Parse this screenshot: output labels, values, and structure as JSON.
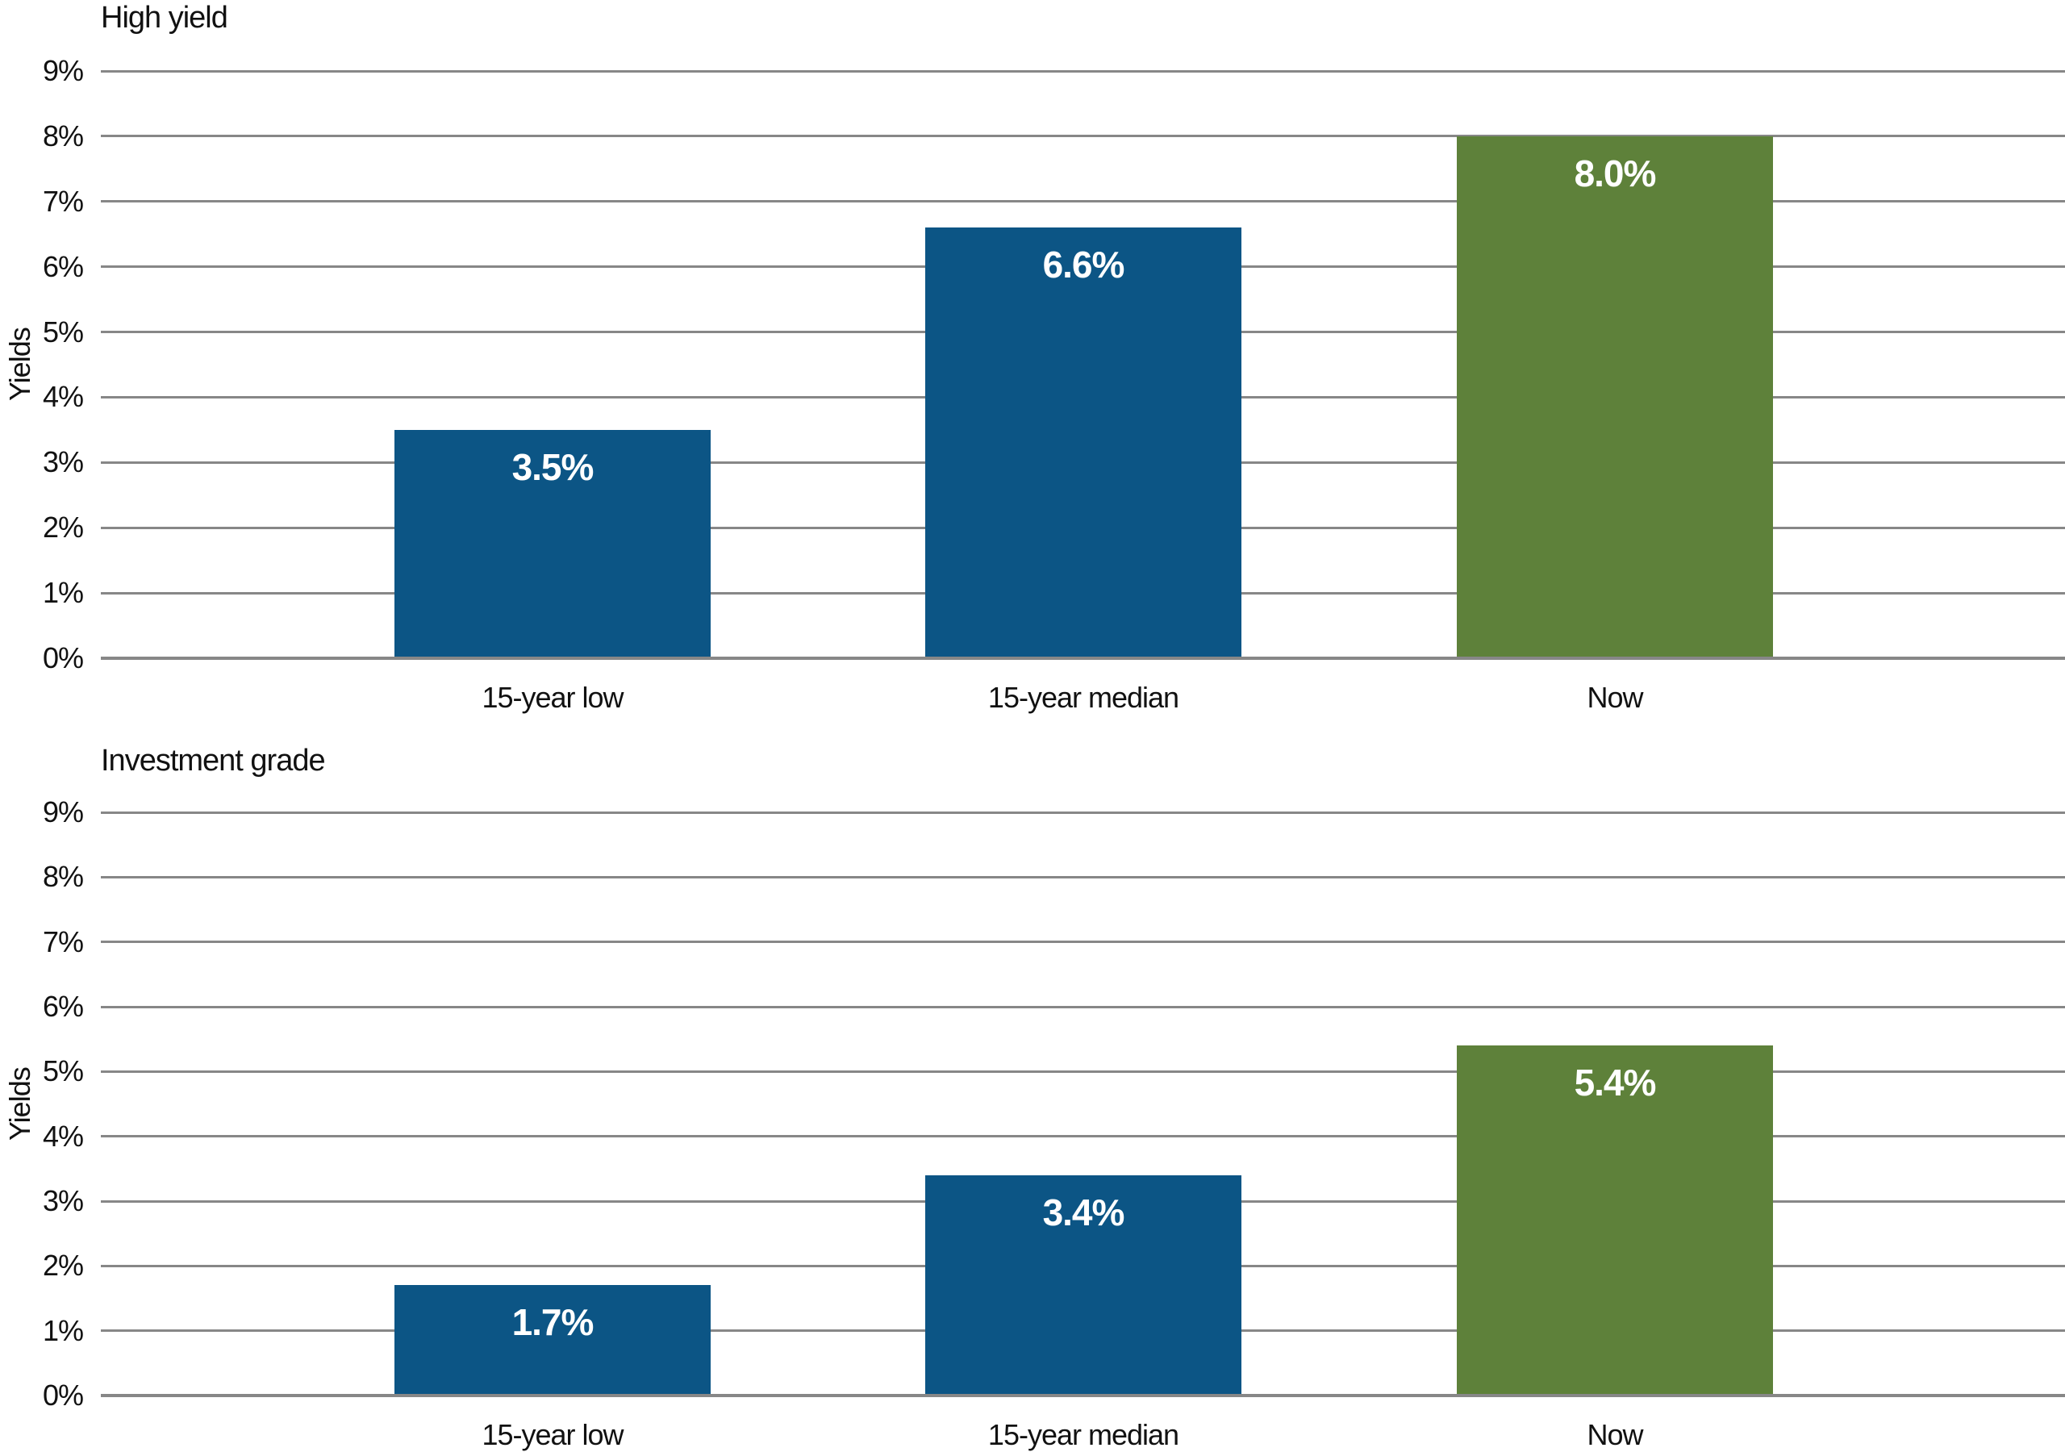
{
  "page": {
    "background": "#ffffff"
  },
  "colors": {
    "bar_blue": "#0C5585",
    "bar_green": "#5E813A",
    "grid": "#878787",
    "axis": "#878787",
    "text": "#111111",
    "value_text": "#ffffff"
  },
  "chart_data": [
    {
      "type": "bar",
      "title": "High yield",
      "ylabel": "Yields",
      "xlabel": "",
      "categories": [
        "15-year low",
        "15-year median",
        "Now"
      ],
      "values": [
        3.5,
        6.6,
        8.0
      ],
      "value_labels": [
        "3.5%",
        "6.6%",
        "8.0%"
      ],
      "bar_colors": [
        "#0C5585",
        "#0C5585",
        "#5E813A"
      ],
      "ylim": [
        0,
        9
      ],
      "ytick_labels": [
        "0%",
        "1%",
        "2%",
        "3%",
        "4%",
        "5%",
        "6%",
        "7%",
        "8%",
        "9%"
      ],
      "grid": "horizontal",
      "legend": "none"
    },
    {
      "type": "bar",
      "title": "Investment grade",
      "ylabel": "Yields",
      "xlabel": "",
      "categories": [
        "15-year low",
        "15-year median",
        "Now"
      ],
      "values": [
        1.7,
        3.4,
        5.4
      ],
      "value_labels": [
        "1.7%",
        "3.4%",
        "5.4%"
      ],
      "bar_colors": [
        "#0C5585",
        "#0C5585",
        "#5E813A"
      ],
      "ylim": [
        0,
        9
      ],
      "ytick_labels": [
        "0%",
        "1%",
        "2%",
        "3%",
        "4%",
        "5%",
        "6%",
        "7%",
        "8%",
        "9%"
      ],
      "grid": "horizontal",
      "legend": "none"
    }
  ]
}
